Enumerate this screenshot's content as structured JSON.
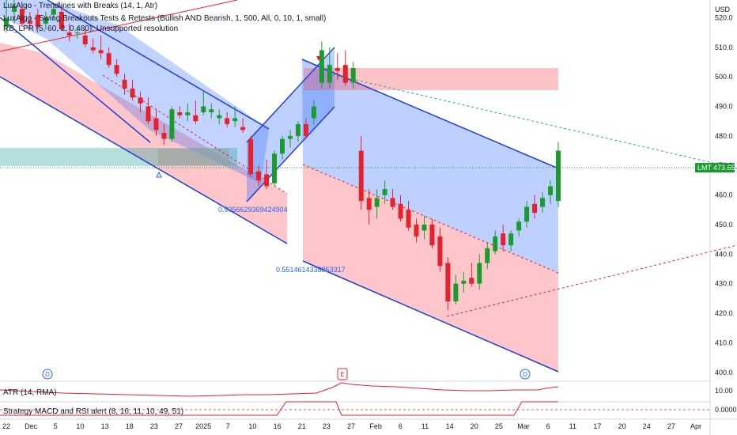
{
  "legend": {
    "line1": "LuxAlgo - Trendlines with Breaks (14, 1, Atr)",
    "line2": "LuxAlgo - Swing Breakouts Tests & Retests (Bullish AND Bearish, 1, 500, All, 0, 10, 1, small)",
    "line3": "RB_LPR (5, 60, 2, 0.480): Unsupported resolution"
  },
  "currency": "USD",
  "last_price": {
    "symbol": "LMT",
    "value": "473.65",
    "price": 473.65
  },
  "annotations": {
    "channel_left_value": "0.9056629369424904",
    "channel_mid_value": "0.5514614338853317"
  },
  "events": [
    {
      "type": "dividend",
      "letter": "D",
      "date": "Nov 29"
    },
    {
      "type": "earnings",
      "letter": "E",
      "date": "Jan 28"
    },
    {
      "type": "dividend",
      "letter": "D",
      "date": "Mar 3"
    }
  ],
  "panes": {
    "atr_label": "ATR (14, RMA)",
    "atr_tick": "10.00",
    "strategy_label": "Strategy MACD and RSI alert (8, 16, 11, 10, 49, 51)",
    "strategy_tick": "0.0000"
  },
  "colors": {
    "up": "#089981",
    "up_strong": "#1a9b2e",
    "down": "#e5212b",
    "channel_blue_fill": "#2962ff",
    "channel_red_fill": "#f7525f",
    "channel_line": "#1e3fd8",
    "teal_zone": "#26a69a",
    "last_price_bg": "#1a9b2e"
  },
  "chart_data": {
    "type": "candlestick",
    "ylim": [
      397,
      526
    ],
    "y_ticks": [
      400,
      410,
      420,
      430,
      440,
      450,
      460,
      470,
      480,
      490,
      500,
      510,
      520
    ],
    "x_ticks": [
      "22",
      "Dec",
      "5",
      "10",
      "13",
      "18",
      "23",
      "27",
      "2025",
      "7",
      "10",
      "16",
      "21",
      "23",
      "27",
      "Feb",
      "6",
      "11",
      "14",
      "20",
      "25",
      "Mar",
      "6",
      "11",
      "17",
      "20",
      "24",
      "27",
      "Apr"
    ],
    "candles": [
      {
        "date": "Nov 22",
        "o": 517,
        "h": 526,
        "l": 515,
        "c": 520
      },
      {
        "date": "Nov 25",
        "o": 522,
        "h": 526,
        "l": 518,
        "c": 524
      },
      {
        "date": "Nov 26",
        "o": 523,
        "h": 525,
        "l": 517,
        "c": 518
      },
      {
        "date": "Nov 27",
        "o": 519,
        "h": 522,
        "l": 516,
        "c": 518
      },
      {
        "date": "Nov 29",
        "o": 521,
        "h": 523,
        "l": 516,
        "c": 517
      },
      {
        "date": "Dec 2",
        "o": 518,
        "h": 522,
        "l": 516,
        "c": 520
      },
      {
        "date": "Dec 3",
        "o": 521,
        "h": 525,
        "l": 519,
        "c": 523
      },
      {
        "date": "Dec 4",
        "o": 522,
        "h": 524,
        "l": 516,
        "c": 516
      },
      {
        "date": "Dec 5",
        "o": 515,
        "h": 518,
        "l": 512,
        "c": 514
      },
      {
        "date": "Dec 6",
        "o": 515,
        "h": 517,
        "l": 513,
        "c": 515
      },
      {
        "date": "Dec 9",
        "o": 514,
        "h": 516,
        "l": 510,
        "c": 511
      },
      {
        "date": "Dec 10",
        "o": 510,
        "h": 513,
        "l": 508,
        "c": 509
      },
      {
        "date": "Dec 11",
        "o": 509,
        "h": 514,
        "l": 506,
        "c": 508
      },
      {
        "date": "Dec 12",
        "o": 508,
        "h": 510,
        "l": 503,
        "c": 504
      },
      {
        "date": "Dec 13",
        "o": 504,
        "h": 506,
        "l": 500,
        "c": 501
      },
      {
        "date": "Dec 16",
        "o": 499,
        "h": 501,
        "l": 494,
        "c": 496
      },
      {
        "date": "Dec 17",
        "o": 496,
        "h": 499,
        "l": 492,
        "c": 493
      },
      {
        "date": "Dec 18",
        "o": 493,
        "h": 495,
        "l": 488,
        "c": 491
      },
      {
        "date": "Dec 19",
        "o": 490,
        "h": 493,
        "l": 484,
        "c": 485
      },
      {
        "date": "Dec 20",
        "o": 486,
        "h": 489,
        "l": 480,
        "c": 482
      },
      {
        "date": "Dec 23",
        "o": 481,
        "h": 484,
        "l": 477,
        "c": 479
      },
      {
        "date": "Dec 24",
        "o": 479,
        "h": 490,
        "l": 478,
        "c": 489
      },
      {
        "date": "Dec 26",
        "o": 488,
        "h": 490,
        "l": 486,
        "c": 487
      },
      {
        "date": "Dec 27",
        "o": 487,
        "h": 491,
        "l": 485,
        "c": 488
      },
      {
        "date": "Dec 30",
        "o": 487,
        "h": 492,
        "l": 484,
        "c": 485
      },
      {
        "date": "Dec 31",
        "o": 488,
        "h": 495,
        "l": 487,
        "c": 490
      },
      {
        "date": "Jan 2",
        "o": 488,
        "h": 491,
        "l": 486,
        "c": 489
      },
      {
        "date": "Jan 3",
        "o": 486,
        "h": 489,
        "l": 484,
        "c": 487
      },
      {
        "date": "Jan 6",
        "o": 486,
        "h": 488,
        "l": 483,
        "c": 484
      },
      {
        "date": "Jan 7",
        "o": 485,
        "h": 490,
        "l": 483,
        "c": 486
      },
      {
        "date": "Jan 8",
        "o": 483,
        "h": 486,
        "l": 481,
        "c": 482
      },
      {
        "date": "Jan 10",
        "o": 479,
        "h": 480,
        "l": 466,
        "c": 467
      },
      {
        "date": "Jan 13",
        "o": 468,
        "h": 470,
        "l": 463,
        "c": 465
      },
      {
        "date": "Jan 14",
        "o": 467,
        "h": 472,
        "l": 462,
        "c": 463
      },
      {
        "date": "Jan 15",
        "o": 464,
        "h": 475,
        "l": 463,
        "c": 474
      },
      {
        "date": "Jan 16",
        "o": 474,
        "h": 480,
        "l": 472,
        "c": 479
      },
      {
        "date": "Jan 17",
        "o": 479,
        "h": 482,
        "l": 476,
        "c": 480
      },
      {
        "date": "Jan 21",
        "o": 480,
        "h": 485,
        "l": 478,
        "c": 484
      },
      {
        "date": "Jan 22",
        "o": 484,
        "h": 486,
        "l": 479,
        "c": 480
      },
      {
        "date": "Jan 23",
        "o": 486,
        "h": 492,
        "l": 484,
        "c": 490
      },
      {
        "date": "Jan 24",
        "o": 498,
        "h": 512,
        "l": 496,
        "c": 509
      },
      {
        "date": "Jan 27",
        "o": 498,
        "h": 510,
        "l": 496,
        "c": 504
      },
      {
        "date": "Jan 28",
        "o": 503,
        "h": 508,
        "l": 499,
        "c": 502
      },
      {
        "date": "Jan 29",
        "o": 504,
        "h": 509,
        "l": 497,
        "c": 498
      },
      {
        "date": "Jan 30",
        "o": 498,
        "h": 505,
        "l": 496,
        "c": 503
      },
      {
        "date": "Jan 31",
        "o": 475,
        "h": 480,
        "l": 455,
        "c": 458
      },
      {
        "date": "Feb 3",
        "o": 459,
        "h": 462,
        "l": 450,
        "c": 455
      },
      {
        "date": "Feb 4",
        "o": 456,
        "h": 462,
        "l": 452,
        "c": 459
      },
      {
        "date": "Feb 5",
        "o": 460,
        "h": 465,
        "l": 457,
        "c": 462
      },
      {
        "date": "Feb 6",
        "o": 459,
        "h": 462,
        "l": 455,
        "c": 456
      },
      {
        "date": "Feb 7",
        "o": 457,
        "h": 460,
        "l": 451,
        "c": 452
      },
      {
        "date": "Feb 10",
        "o": 455,
        "h": 458,
        "l": 448,
        "c": 449
      },
      {
        "date": "Feb 11",
        "o": 450,
        "h": 452,
        "l": 444,
        "c": 446
      },
      {
        "date": "Feb 12",
        "o": 448,
        "h": 453,
        "l": 445,
        "c": 450
      },
      {
        "date": "Feb 13",
        "o": 450,
        "h": 452,
        "l": 442,
        "c": 443
      },
      {
        "date": "Feb 14",
        "o": 446,
        "h": 449,
        "l": 434,
        "c": 436
      },
      {
        "date": "Feb 18",
        "o": 437,
        "h": 439,
        "l": 421,
        "c": 424
      },
      {
        "date": "Feb 19",
        "o": 424,
        "h": 433,
        "l": 423,
        "c": 430
      },
      {
        "date": "Feb 20",
        "o": 430,
        "h": 434,
        "l": 427,
        "c": 431
      },
      {
        "date": "Feb 21",
        "o": 432,
        "h": 437,
        "l": 429,
        "c": 430
      },
      {
        "date": "Feb 24",
        "o": 430,
        "h": 440,
        "l": 428,
        "c": 437
      },
      {
        "date": "Feb 25",
        "o": 437,
        "h": 444,
        "l": 435,
        "c": 442
      },
      {
        "date": "Feb 26",
        "o": 441,
        "h": 448,
        "l": 440,
        "c": 446
      },
      {
        "date": "Feb 27",
        "o": 447,
        "h": 450,
        "l": 441,
        "c": 443
      },
      {
        "date": "Feb 28",
        "o": 443,
        "h": 448,
        "l": 441,
        "c": 447
      },
      {
        "date": "Mar 3",
        "o": 448,
        "h": 452,
        "l": 446,
        "c": 451
      },
      {
        "date": "Mar 4",
        "o": 451,
        "h": 458,
        "l": 449,
        "c": 456
      },
      {
        "date": "Mar 5",
        "o": 457,
        "h": 460,
        "l": 452,
        "c": 454
      },
      {
        "date": "Mar 6",
        "o": 456,
        "h": 461,
        "l": 454,
        "c": 459
      },
      {
        "date": "Mar 7",
        "o": 460,
        "h": 465,
        "l": 457,
        "c": 463
      },
      {
        "date": "Mar 10",
        "o": 458,
        "h": 478,
        "l": 456,
        "c": 475
      }
    ]
  }
}
